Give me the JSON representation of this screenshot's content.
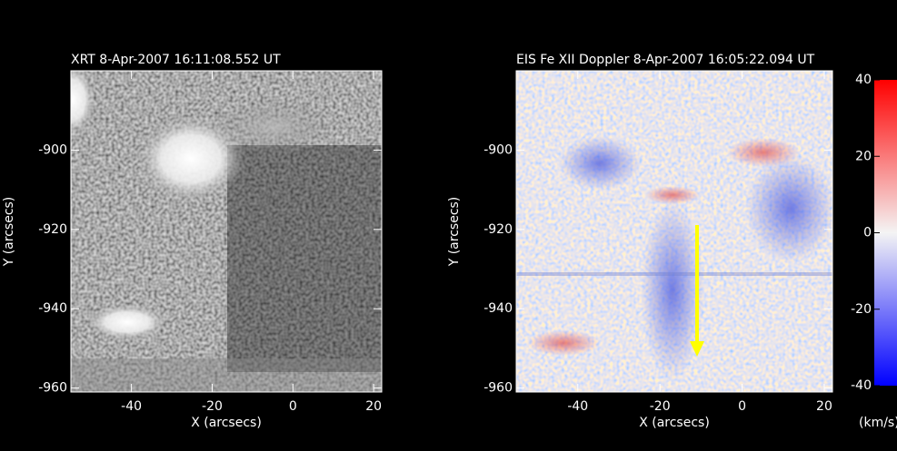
{
  "chart_data": [
    {
      "type": "image",
      "title": "XRT   8-Apr-2007 16:11:08.552 UT",
      "colormap": "gray",
      "x_label": "X (arcsecs)",
      "y_label": "Y (arcsecs)",
      "xlim": [
        -55,
        22
      ],
      "ylim": [
        -961,
        -880
      ],
      "xticks": [
        -40,
        -20,
        0,
        20
      ],
      "yticks": [
        -900,
        -920,
        -940,
        -960
      ]
    },
    {
      "type": "image",
      "title": "EIS Fe XII Doppler   8-Apr-2007 16:05:22.094 UT",
      "colormap": "red-blue",
      "x_label": "X (arcsecs)",
      "y_label": "Y (arcsecs)",
      "xlim": [
        -55,
        22
      ],
      "ylim": [
        -961,
        -880
      ],
      "xticks": [
        -40,
        -20,
        0,
        20
      ],
      "yticks": [
        -900,
        -920,
        -940,
        -960
      ],
      "colorbar": {
        "label": "(km/s)",
        "ylim": [
          -40,
          40
        ],
        "yticks": [
          40,
          20,
          0,
          -20,
          -40
        ]
      }
    }
  ]
}
